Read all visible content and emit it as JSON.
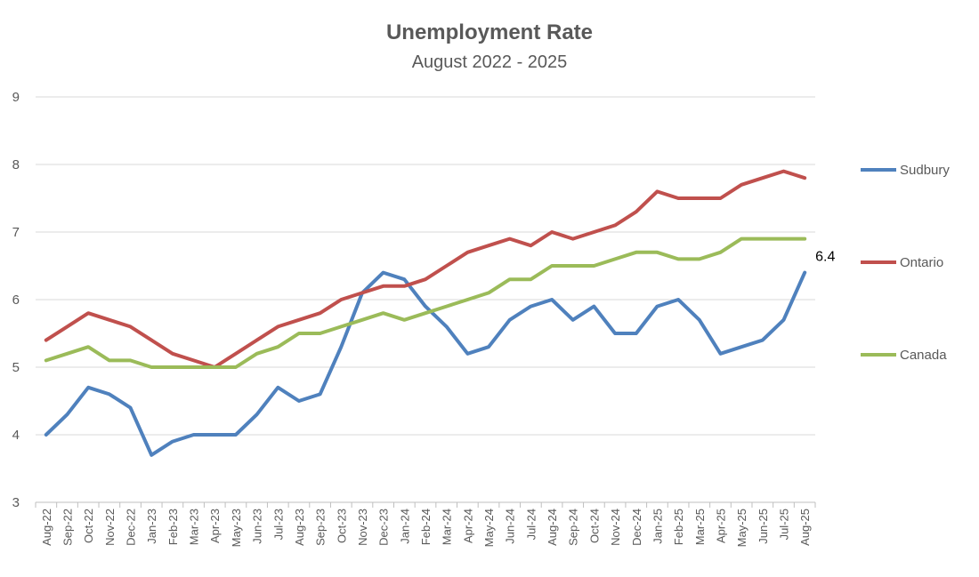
{
  "chart_data": {
    "type": "line",
    "title": "Unemployment Rate",
    "subtitle": "August 2022 - 2025",
    "xlabel": "",
    "ylabel": "",
    "ylim": [
      3,
      9
    ],
    "yticks": [
      "3",
      "4",
      "5",
      "6",
      "7",
      "8",
      "9"
    ],
    "grid": true,
    "legend_position": "right",
    "categories": [
      "Aug-22",
      "Sep-22",
      "Oct-22",
      "Nov-22",
      "Dec-22",
      "Jan-23",
      "Feb-23",
      "Mar-23",
      "Apr-23",
      "May-23",
      "Jun-23",
      "Jul-23",
      "Aug-23",
      "Sep-23",
      "Oct-23",
      "Nov-23",
      "Dec-23",
      "Jan-24",
      "Feb-24",
      "Mar-24",
      "Apr-24",
      "May-24",
      "Jun-24",
      "Jul-24",
      "Aug-24",
      "Sep-24",
      "Oct-24",
      "Nov-24",
      "Dec-24",
      "Jan-25",
      "Feb-25",
      "Mar-25",
      "Apr-25",
      "May-25",
      "Jun-25",
      "Jul-25",
      "Aug-25"
    ],
    "series": [
      {
        "name": "Sudbury",
        "color": "#4F81BD",
        "values": [
          4.0,
          4.3,
          4.7,
          4.6,
          4.4,
          3.7,
          3.9,
          4.0,
          4.0,
          4.0,
          4.3,
          4.7,
          4.5,
          4.6,
          5.3,
          6.1,
          6.4,
          6.3,
          5.9,
          5.6,
          5.2,
          5.3,
          5.7,
          5.9,
          6.0,
          5.7,
          5.9,
          5.5,
          5.5,
          5.9,
          6.0,
          5.7,
          5.2,
          5.3,
          5.4,
          5.7,
          6.4
        ]
      },
      {
        "name": "Ontario",
        "color": "#C0504D",
        "values": [
          5.4,
          5.6,
          5.8,
          5.7,
          5.6,
          5.4,
          5.2,
          5.1,
          5.0,
          5.2,
          5.4,
          5.6,
          5.7,
          5.8,
          6.0,
          6.1,
          6.2,
          6.2,
          6.3,
          6.5,
          6.7,
          6.8,
          6.9,
          6.8,
          7.0,
          6.9,
          7.0,
          7.1,
          7.3,
          7.6,
          7.5,
          7.5,
          7.5,
          7.7,
          7.8,
          7.9,
          7.8
        ]
      },
      {
        "name": "Canada",
        "color": "#9BBB59",
        "values": [
          5.1,
          5.2,
          5.3,
          5.1,
          5.1,
          5.0,
          5.0,
          5.0,
          5.0,
          5.0,
          5.2,
          5.3,
          5.5,
          5.5,
          5.6,
          5.7,
          5.8,
          5.7,
          5.8,
          5.9,
          6.0,
          6.1,
          6.3,
          6.3,
          6.5,
          6.5,
          6.5,
          6.6,
          6.7,
          6.7,
          6.6,
          6.6,
          6.7,
          6.9,
          6.9,
          6.9,
          6.9
        ]
      }
    ],
    "annotations": [
      {
        "series": "Sudbury",
        "category": "Aug-25",
        "text": "6.4"
      }
    ]
  }
}
